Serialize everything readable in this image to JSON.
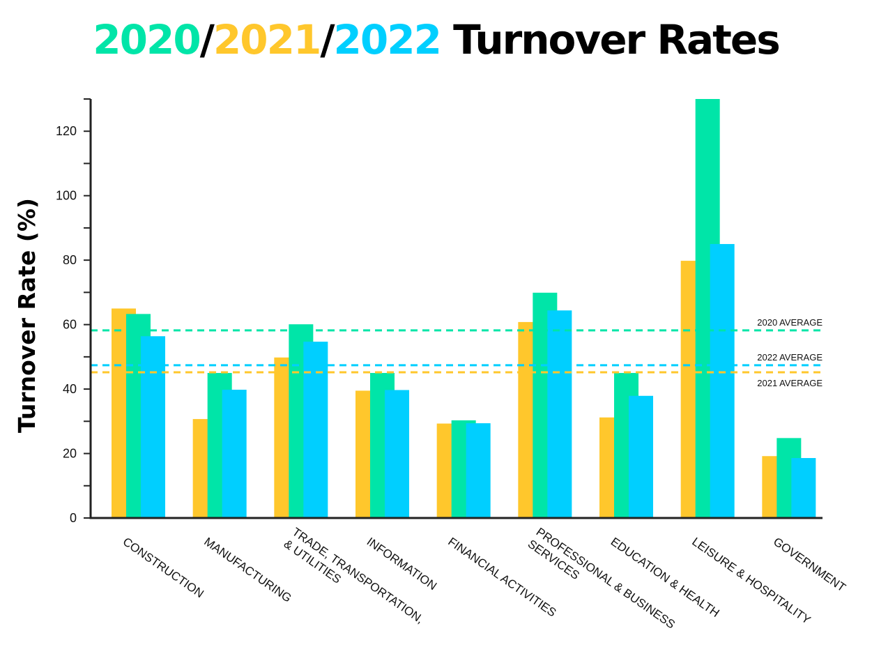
{
  "title": {
    "parts": [
      {
        "text": "2020",
        "color": "#00e5a8"
      },
      {
        "text": "/",
        "color": "#000000"
      },
      {
        "text": "2021",
        "color": "#ffc72c"
      },
      {
        "text": "/",
        "color": "#000000"
      },
      {
        "text": "2022",
        "color": "#00cfff"
      },
      {
        "text": " Turnover Rates",
        "color": "#000000"
      }
    ]
  },
  "chart_data": {
    "type": "bar",
    "title": "2020/2021/2022 Turnover Rates",
    "xlabel": "",
    "ylabel": "Turnover Rate (%)",
    "ylim": [
      0,
      130
    ],
    "yticks": [
      0,
      20,
      40,
      60,
      80,
      100,
      120
    ],
    "grid": false,
    "categories": [
      [
        "CONSTRUCTION"
      ],
      [
        "MANUFACTURING"
      ],
      [
        "TRADE, TRANSPORTATION,",
        "& UTILITIES"
      ],
      [
        "INFORMATION"
      ],
      [
        "FINANCIAL ACTIVITIES"
      ],
      [
        "PROFESSIONAL & BUSINESS",
        "SERVICES"
      ],
      [
        "EDUCATION & HEALTH"
      ],
      [
        "LEISURE & HOSPITALITY"
      ],
      [
        "GOVERNMENT"
      ]
    ],
    "series": [
      {
        "name": "2021",
        "color": "#ffc72c",
        "values": [
          65,
          30.7,
          49.8,
          39.5,
          29.3,
          60.8,
          31.2,
          79.8,
          19.2
        ]
      },
      {
        "name": "2020",
        "color": "#00e5a8",
        "values": [
          63.3,
          45,
          60.1,
          45,
          30.3,
          69.9,
          45,
          130,
          24.8
        ]
      },
      {
        "name": "2022",
        "color": "#00cfff",
        "values": [
          56.4,
          39.8,
          54.7,
          39.7,
          29.4,
          64.4,
          37.9,
          85,
          18.6
        ]
      }
    ],
    "averages": [
      {
        "label": "2020 AVERAGE",
        "value": 58.2,
        "color": "#00e5a8"
      },
      {
        "label": "2022 AVERAGE",
        "value": 47.4,
        "color": "#00cfff"
      },
      {
        "label": "2021 AVERAGE",
        "value": 45.2,
        "color": "#ffc72c"
      }
    ]
  }
}
